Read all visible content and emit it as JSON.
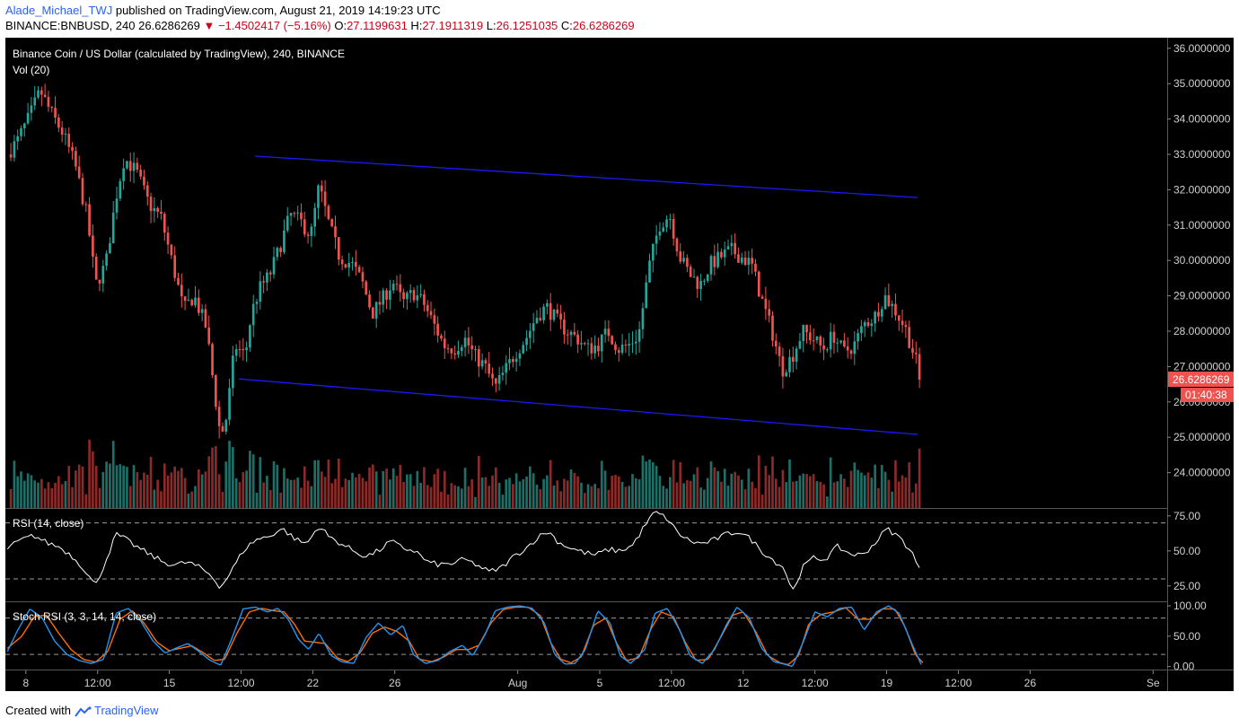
{
  "header": {
    "author": "Alade_Michael_TWJ",
    "published_text": "published on TradingView.com, August 21, 2019 14:19:23 UTC",
    "symbol": "BINANCE:BNBUSD, 240",
    "last_price": "26.6286269",
    "change": "−1.4502417 (−5.16%)",
    "open_label": "O:",
    "open": "27.1199631",
    "high_label": "H:",
    "high": "27.1911319",
    "low_label": "L:",
    "low": "26.1251035",
    "close_label": "C:",
    "close": "26.6286269",
    "down_arrow": "▼"
  },
  "footer": {
    "created_with": "Created with",
    "brand": "TradingView",
    "logo_icon": "tradingview-logo-icon"
  },
  "colors": {
    "bg": "#000000",
    "up": "#26a69a",
    "down": "#ef5350",
    "vol_up": "#1e6f68",
    "vol_down": "#8b2a28",
    "channel": "#1a1aff",
    "line": "#ffffff",
    "stoch_k": "#2196f3",
    "stoch_d": "#ff6d00"
  },
  "chart_data": [
    {
      "type": "candlestick",
      "title": "Binance Coin / US Dollar (calculated by TradingView), 240, BINANCE",
      "subtitle": "Vol (20)",
      "ylim": [
        23.0,
        36.3
      ],
      "y_ticks": [
        "36.0000000",
        "35.0000000",
        "34.0000000",
        "33.0000000",
        "32.0000000",
        "31.0000000",
        "30.0000000",
        "29.0000000",
        "28.0000000",
        "27.0000000",
        "26.0000000",
        "25.0000000",
        "24.0000000"
      ],
      "y_tick_values": [
        36,
        35,
        34,
        33,
        32,
        31,
        30,
        29,
        28,
        27,
        26,
        25,
        24
      ],
      "price_label": "26.6286269",
      "countdown_label": "01:40:38",
      "x_ticks": [
        "8",
        "12:00",
        "15",
        "12:00",
        "22",
        "26",
        "Aug",
        "5",
        "12:00",
        "12",
        "12:00",
        "19",
        "12:00",
        "26",
        "Se"
      ],
      "x_tick_days": [
        8,
        11.5,
        15,
        18.5,
        22,
        26,
        32,
        36,
        39.5,
        43,
        46.5,
        50,
        53.5,
        57,
        63
      ],
      "x_day_range": [
        7,
        63.6
      ],
      "day_labels_note": "x in calendar days counted from Jul 1, 2019",
      "channel": [
        {
          "x": [
            19.2,
            51.5
          ],
          "y": [
            32.95,
            31.78
          ]
        },
        {
          "x": [
            18.4,
            51.5
          ],
          "y": [
            26.65,
            25.08
          ]
        }
      ],
      "anchors": [
        [
          7.1,
          33.0
        ],
        [
          7.6,
          33.4
        ],
        [
          8.2,
          34.1
        ],
        [
          8.7,
          34.8
        ],
        [
          9.2,
          34.2
        ],
        [
          9.8,
          33.6
        ],
        [
          10.4,
          32.7
        ],
        [
          11.0,
          31.2
        ],
        [
          11.4,
          29.3
        ],
        [
          11.9,
          29.9
        ],
        [
          12.4,
          31.8
        ],
        [
          12.8,
          32.9
        ],
        [
          13.4,
          32.5
        ],
        [
          14.0,
          31.6
        ],
        [
          14.6,
          31.2
        ],
        [
          15.2,
          29.8
        ],
        [
          15.7,
          28.6
        ],
        [
          16.2,
          29.0
        ],
        [
          16.8,
          28.1
        ],
        [
          17.2,
          26.3
        ],
        [
          17.5,
          25.0
        ],
        [
          17.8,
          25.6
        ],
        [
          18.2,
          27.6
        ],
        [
          18.7,
          27.3
        ],
        [
          19.0,
          28.5
        ],
        [
          19.4,
          29.2
        ],
        [
          19.9,
          29.6
        ],
        [
          20.4,
          30.4
        ],
        [
          20.9,
          31.3
        ],
        [
          21.4,
          31.1
        ],
        [
          21.9,
          30.7
        ],
        [
          22.3,
          32.1
        ],
        [
          22.8,
          31.0
        ],
        [
          23.3,
          30.1
        ],
        [
          23.9,
          29.9
        ],
        [
          24.4,
          29.4
        ],
        [
          24.9,
          28.5
        ],
        [
          25.4,
          28.9
        ],
        [
          25.9,
          29.4
        ],
        [
          26.4,
          28.8
        ],
        [
          26.9,
          29.1
        ],
        [
          27.4,
          28.8
        ],
        [
          27.9,
          28.2
        ],
        [
          28.4,
          27.6
        ],
        [
          28.9,
          27.5
        ],
        [
          29.4,
          27.8
        ],
        [
          29.9,
          27.3
        ],
        [
          30.4,
          27.0
        ],
        [
          30.9,
          26.4
        ],
        [
          31.4,
          26.9
        ],
        [
          31.9,
          27.4
        ],
        [
          32.4,
          27.8
        ],
        [
          32.9,
          28.4
        ],
        [
          33.4,
          28.7
        ],
        [
          33.9,
          28.3
        ],
        [
          34.4,
          28.0
        ],
        [
          34.9,
          27.8
        ],
        [
          35.4,
          27.5
        ],
        [
          35.9,
          27.6
        ],
        [
          36.4,
          28.0
        ],
        [
          36.9,
          27.5
        ],
        [
          37.4,
          27.6
        ],
        [
          37.9,
          27.9
        ],
        [
          38.4,
          29.8
        ],
        [
          38.9,
          31.0
        ],
        [
          39.4,
          31.3
        ],
        [
          39.9,
          30.1
        ],
        [
          40.4,
          29.6
        ],
        [
          40.9,
          29.3
        ],
        [
          41.4,
          29.9
        ],
        [
          41.9,
          30.1
        ],
        [
          42.4,
          30.3
        ],
        [
          42.9,
          30.1
        ],
        [
          43.4,
          29.9
        ],
        [
          43.9,
          28.9
        ],
        [
          44.4,
          28.0
        ],
        [
          44.9,
          26.9
        ],
        [
          45.4,
          27.3
        ],
        [
          45.9,
          28.0
        ],
        [
          46.4,
          27.8
        ],
        [
          46.9,
          27.5
        ],
        [
          47.4,
          27.9
        ],
        [
          47.9,
          27.4
        ],
        [
          48.4,
          27.6
        ],
        [
          48.9,
          28.2
        ],
        [
          49.4,
          28.4
        ],
        [
          49.9,
          29.0
        ],
        [
          50.4,
          28.6
        ],
        [
          50.9,
          28.1
        ],
        [
          51.3,
          27.4
        ],
        [
          51.7,
          26.63
        ]
      ],
      "volume_ylim": [
        0,
        14
      ]
    },
    {
      "type": "line",
      "title": "RSI (14, close)",
      "ylim": [
        14,
        80
      ],
      "y_ticks": [
        "75.00",
        "50.00",
        "25.00"
      ],
      "y_tick_values": [
        75,
        50,
        25
      ],
      "levels": [
        70,
        30
      ],
      "anchors": [
        [
          7.1,
          52
        ],
        [
          7.8,
          58
        ],
        [
          8.4,
          61
        ],
        [
          9.0,
          56
        ],
        [
          9.6,
          53
        ],
        [
          10.2,
          47
        ],
        [
          10.8,
          38
        ],
        [
          11.4,
          25
        ],
        [
          11.9,
          43
        ],
        [
          12.4,
          62
        ],
        [
          12.9,
          58
        ],
        [
          13.5,
          52
        ],
        [
          14.1,
          47
        ],
        [
          14.7,
          42
        ],
        [
          15.3,
          40
        ],
        [
          15.9,
          42
        ],
        [
          16.5,
          38
        ],
        [
          17.0,
          33
        ],
        [
          17.5,
          24
        ],
        [
          18.0,
          35
        ],
        [
          18.6,
          50
        ],
        [
          19.2,
          58
        ],
        [
          19.8,
          60
        ],
        [
          20.5,
          66
        ],
        [
          21.2,
          58
        ],
        [
          21.7,
          55
        ],
        [
          22.3,
          68
        ],
        [
          22.8,
          60
        ],
        [
          23.4,
          55
        ],
        [
          24.0,
          50
        ],
        [
          24.6,
          46
        ],
        [
          25.2,
          50
        ],
        [
          25.8,
          57
        ],
        [
          26.4,
          52
        ],
        [
          27.0,
          50
        ],
        [
          27.6,
          42
        ],
        [
          28.2,
          40
        ],
        [
          28.8,
          41
        ],
        [
          29.4,
          44
        ],
        [
          30.0,
          40
        ],
        [
          30.6,
          35
        ],
        [
          31.2,
          38
        ],
        [
          31.8,
          46
        ],
        [
          32.4,
          52
        ],
        [
          33.0,
          60
        ],
        [
          33.5,
          64
        ],
        [
          34.0,
          56
        ],
        [
          34.6,
          52
        ],
        [
          35.2,
          49
        ],
        [
          35.8,
          47
        ],
        [
          36.4,
          51
        ],
        [
          37.0,
          50
        ],
        [
          37.6,
          54
        ],
        [
          38.2,
          68
        ],
        [
          38.7,
          78
        ],
        [
          39.3,
          73
        ],
        [
          39.8,
          63
        ],
        [
          40.4,
          57
        ],
        [
          41.0,
          55
        ],
        [
          41.6,
          58
        ],
        [
          42.2,
          62
        ],
        [
          42.8,
          64
        ],
        [
          43.4,
          58
        ],
        [
          43.9,
          50
        ],
        [
          44.5,
          43
        ],
        [
          45.0,
          38
        ],
        [
          45.4,
          21
        ],
        [
          45.9,
          38
        ],
        [
          46.4,
          45
        ],
        [
          47.0,
          44
        ],
        [
          47.6,
          53
        ],
        [
          48.2,
          48
        ],
        [
          48.8,
          47
        ],
        [
          49.4,
          55
        ],
        [
          50.0,
          66
        ],
        [
          50.6,
          60
        ],
        [
          51.2,
          50
        ],
        [
          51.7,
          33
        ]
      ]
    },
    {
      "type": "line",
      "title": "Stoch RSI (3, 3, 14, 14, close)",
      "ylim": [
        -5,
        106
      ],
      "y_ticks": [
        "100.00",
        "50.00",
        "0.00"
      ],
      "y_tick_values": [
        100,
        50,
        0
      ],
      "levels": [
        80,
        20
      ],
      "anchors_k": [
        [
          7.1,
          25
        ],
        [
          7.6,
          60
        ],
        [
          8.2,
          95
        ],
        [
          8.8,
          80
        ],
        [
          9.4,
          42
        ],
        [
          10.0,
          20
        ],
        [
          10.6,
          10
        ],
        [
          11.2,
          5
        ],
        [
          11.8,
          12
        ],
        [
          12.4,
          88
        ],
        [
          13.0,
          96
        ],
        [
          13.6,
          75
        ],
        [
          14.2,
          42
        ],
        [
          14.8,
          22
        ],
        [
          15.3,
          30
        ],
        [
          15.9,
          38
        ],
        [
          16.4,
          26
        ],
        [
          17.0,
          10
        ],
        [
          17.5,
          2
        ],
        [
          18.0,
          42
        ],
        [
          18.6,
          95
        ],
        [
          19.2,
          98
        ],
        [
          19.8,
          90
        ],
        [
          20.3,
          96
        ],
        [
          20.8,
          78
        ],
        [
          21.3,
          45
        ],
        [
          21.8,
          28
        ],
        [
          22.3,
          55
        ],
        [
          22.9,
          18
        ],
        [
          23.4,
          8
        ],
        [
          24.0,
          5
        ],
        [
          24.6,
          48
        ],
        [
          25.2,
          72
        ],
        [
          25.8,
          52
        ],
        [
          26.4,
          68
        ],
        [
          26.9,
          20
        ],
        [
          27.5,
          5
        ],
        [
          28.1,
          10
        ],
        [
          28.7,
          25
        ],
        [
          29.3,
          35
        ],
        [
          29.8,
          18
        ],
        [
          30.4,
          52
        ],
        [
          30.9,
          92
        ],
        [
          31.5,
          98
        ],
        [
          32.1,
          100
        ],
        [
          32.7,
          96
        ],
        [
          33.3,
          72
        ],
        [
          33.8,
          20
        ],
        [
          34.3,
          4
        ],
        [
          34.8,
          5
        ],
        [
          35.3,
          28
        ],
        [
          35.9,
          92
        ],
        [
          36.5,
          72
        ],
        [
          37.0,
          18
        ],
        [
          37.5,
          5
        ],
        [
          38.2,
          28
        ],
        [
          38.7,
          88
        ],
        [
          39.3,
          96
        ],
        [
          39.9,
          60
        ],
        [
          40.4,
          18
        ],
        [
          41.0,
          5
        ],
        [
          41.6,
          28
        ],
        [
          42.2,
          70
        ],
        [
          42.7,
          98
        ],
        [
          43.3,
          80
        ],
        [
          43.9,
          30
        ],
        [
          44.5,
          8
        ],
        [
          45.0,
          4
        ],
        [
          45.4,
          0
        ],
        [
          45.9,
          38
        ],
        [
          46.5,
          90
        ],
        [
          47.1,
          82
        ],
        [
          47.7,
          96
        ],
        [
          48.3,
          98
        ],
        [
          48.9,
          60
        ],
        [
          49.5,
          90
        ],
        [
          50.1,
          100
        ],
        [
          50.6,
          88
        ],
        [
          51.2,
          40
        ],
        [
          51.7,
          2
        ]
      ],
      "anchors_d": [
        [
          7.1,
          30
        ],
        [
          7.8,
          50
        ],
        [
          8.4,
          82
        ],
        [
          9.0,
          85
        ],
        [
          9.6,
          55
        ],
        [
          10.2,
          28
        ],
        [
          10.8,
          12
        ],
        [
          11.4,
          7
        ],
        [
          12.0,
          25
        ],
        [
          12.6,
          78
        ],
        [
          13.2,
          92
        ],
        [
          13.8,
          70
        ],
        [
          14.4,
          40
        ],
        [
          15.0,
          26
        ],
        [
          15.5,
          30
        ],
        [
          16.1,
          34
        ],
        [
          16.6,
          24
        ],
        [
          17.2,
          10
        ],
        [
          17.7,
          12
        ],
        [
          18.3,
          55
        ],
        [
          18.9,
          90
        ],
        [
          19.5,
          96
        ],
        [
          20.1,
          92
        ],
        [
          20.6,
          90
        ],
        [
          21.1,
          70
        ],
        [
          21.6,
          42
        ],
        [
          22.1,
          40
        ],
        [
          22.6,
          38
        ],
        [
          23.2,
          14
        ],
        [
          23.7,
          8
        ],
        [
          24.3,
          22
        ],
        [
          24.9,
          55
        ],
        [
          25.5,
          65
        ],
        [
          26.1,
          58
        ],
        [
          26.7,
          42
        ],
        [
          27.2,
          12
        ],
        [
          27.8,
          8
        ],
        [
          28.4,
          16
        ],
        [
          29.0,
          28
        ],
        [
          29.6,
          28
        ],
        [
          30.1,
          35
        ],
        [
          30.7,
          72
        ],
        [
          31.3,
          94
        ],
        [
          31.9,
          98
        ],
        [
          32.5,
          98
        ],
        [
          33.1,
          84
        ],
        [
          33.6,
          40
        ],
        [
          34.1,
          12
        ],
        [
          34.6,
          6
        ],
        [
          35.1,
          16
        ],
        [
          35.7,
          68
        ],
        [
          36.3,
          80
        ],
        [
          36.8,
          40
        ],
        [
          37.3,
          10
        ],
        [
          37.9,
          14
        ],
        [
          38.5,
          62
        ],
        [
          39.0,
          90
        ],
        [
          39.6,
          82
        ],
        [
          40.2,
          38
        ],
        [
          40.7,
          10
        ],
        [
          41.3,
          12
        ],
        [
          41.9,
          48
        ],
        [
          42.5,
          85
        ],
        [
          43.0,
          90
        ],
        [
          43.6,
          58
        ],
        [
          44.2,
          18
        ],
        [
          44.8,
          6
        ],
        [
          45.2,
          3
        ],
        [
          45.7,
          18
        ],
        [
          46.2,
          70
        ],
        [
          46.8,
          86
        ],
        [
          47.4,
          90
        ],
        [
          48.0,
          97
        ],
        [
          48.6,
          78
        ],
        [
          49.2,
          78
        ],
        [
          49.8,
          95
        ],
        [
          50.4,
          95
        ],
        [
          50.9,
          65
        ],
        [
          51.4,
          20
        ],
        [
          51.8,
          5
        ]
      ]
    }
  ]
}
